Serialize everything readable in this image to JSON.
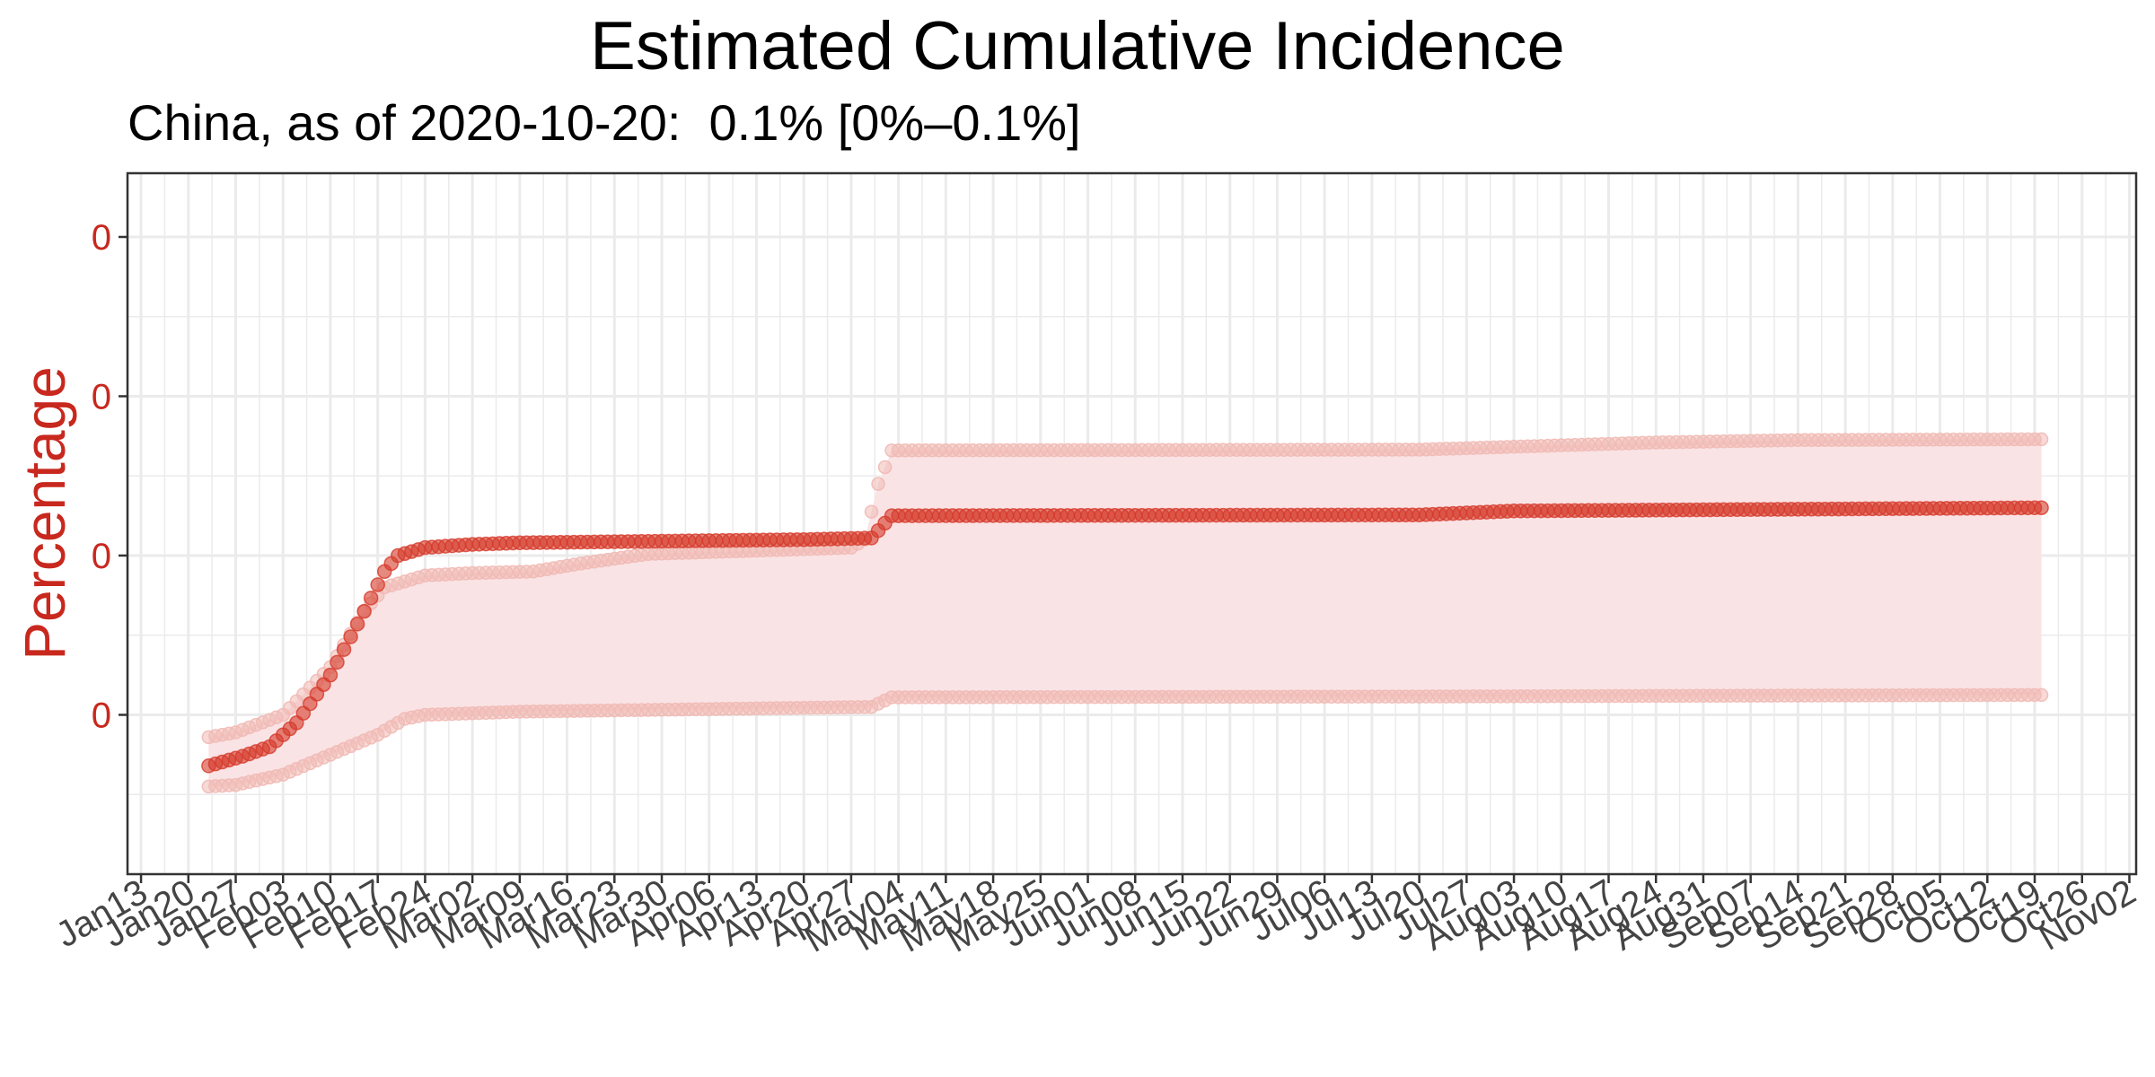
{
  "chart_data": {
    "type": "scatter",
    "title": "Estimated Cumulative Incidence",
    "subtitle": "China, as of 2020-10-20:  0.1% [0%–0.1%]",
    "xlabel": "",
    "ylabel": "Percentage",
    "y_tick_labels": [
      "0",
      "0",
      "0",
      "0"
    ],
    "y_tick_values": [
      0.02,
      0.04,
      0.06,
      0.08
    ],
    "ylim": [
      0.0,
      0.088
    ],
    "xlim": [
      "2020-01-11",
      "2020-11-03"
    ],
    "x_tick_labels": [
      "Jan13",
      "Jan20",
      "Jan27",
      "Feb03",
      "Feb10",
      "Feb17",
      "Feb24",
      "Mar02",
      "Mar09",
      "Mar16",
      "Mar23",
      "Mar30",
      "Apr06",
      "Apr13",
      "Apr20",
      "Apr27",
      "May04",
      "May11",
      "May18",
      "May25",
      "Jun01",
      "Jun08",
      "Jun15",
      "Jun22",
      "Jun29",
      "Jul06",
      "Jul13",
      "Jul20",
      "Jul27",
      "Aug03",
      "Aug10",
      "Aug17",
      "Aug24",
      "Aug31",
      "Sep07",
      "Sep14",
      "Sep21",
      "Sep28",
      "Oct05",
      "Oct12",
      "Oct19",
      "Oct26",
      "Nov02"
    ],
    "x_tick_dates": [
      "2020-01-13",
      "2020-01-20",
      "2020-01-27",
      "2020-02-03",
      "2020-02-10",
      "2020-02-17",
      "2020-02-24",
      "2020-03-02",
      "2020-03-09",
      "2020-03-16",
      "2020-03-23",
      "2020-03-30",
      "2020-04-06",
      "2020-04-13",
      "2020-04-20",
      "2020-04-27",
      "2020-05-04",
      "2020-05-11",
      "2020-05-18",
      "2020-05-25",
      "2020-06-01",
      "2020-06-08",
      "2020-06-15",
      "2020-06-22",
      "2020-06-29",
      "2020-07-06",
      "2020-07-13",
      "2020-07-20",
      "2020-07-27",
      "2020-08-03",
      "2020-08-10",
      "2020-08-17",
      "2020-08-24",
      "2020-08-31",
      "2020-09-07",
      "2020-09-14",
      "2020-09-21",
      "2020-09-28",
      "2020-10-05",
      "2020-10-12",
      "2020-10-19",
      "2020-10-26",
      "2020-11-02"
    ],
    "grid": true,
    "date_range": [
      "2020-01-23",
      "2020-10-20"
    ],
    "series": [
      {
        "role": "estimate",
        "points": [
          [
            "2020-01-23",
            0.0136
          ],
          [
            "2020-01-28",
            0.0148
          ],
          [
            "2020-02-01",
            0.016
          ],
          [
            "2020-02-05",
            0.019
          ],
          [
            "2020-02-10",
            0.025
          ],
          [
            "2020-02-15",
            0.033
          ],
          [
            "2020-02-18",
            0.038
          ],
          [
            "2020-02-20",
            0.04
          ],
          [
            "2020-02-24",
            0.041
          ],
          [
            "2020-03-02",
            0.0414
          ],
          [
            "2020-03-09",
            0.0416
          ],
          [
            "2020-04-20",
            0.042
          ],
          [
            "2020-04-30",
            0.0422
          ],
          [
            "2020-05-03",
            0.045
          ],
          [
            "2020-07-20",
            0.0451
          ],
          [
            "2020-08-03",
            0.0456
          ],
          [
            "2020-10-20",
            0.046
          ]
        ]
      },
      {
        "role": "lower",
        "points": [
          [
            "2020-01-23",
            0.011
          ],
          [
            "2020-01-27",
            0.0112
          ],
          [
            "2020-02-03",
            0.0125
          ],
          [
            "2020-02-10",
            0.015
          ],
          [
            "2020-02-17",
            0.0175
          ],
          [
            "2020-02-21",
            0.0195
          ],
          [
            "2020-02-24",
            0.02
          ],
          [
            "2020-03-09",
            0.0204
          ],
          [
            "2020-04-30",
            0.021
          ],
          [
            "2020-05-03",
            0.0222
          ],
          [
            "2020-07-20",
            0.0223
          ],
          [
            "2020-10-20",
            0.0225
          ]
        ]
      },
      {
        "role": "upper",
        "points": [
          [
            "2020-01-23",
            0.0172
          ],
          [
            "2020-01-27",
            0.0178
          ],
          [
            "2020-02-03",
            0.02
          ],
          [
            "2020-02-10",
            0.026
          ],
          [
            "2020-02-15",
            0.033
          ],
          [
            "2020-02-18",
            0.036
          ],
          [
            "2020-02-24",
            0.0375
          ],
          [
            "2020-03-02",
            0.0378
          ],
          [
            "2020-03-11",
            0.038
          ],
          [
            "2020-03-18",
            0.039
          ],
          [
            "2020-03-28",
            0.0402
          ],
          [
            "2020-04-20",
            0.0408
          ],
          [
            "2020-04-27",
            0.041
          ],
          [
            "2020-04-29",
            0.042
          ],
          [
            "2020-05-01",
            0.049
          ],
          [
            "2020-05-03",
            0.0532
          ],
          [
            "2020-07-20",
            0.0533
          ],
          [
            "2020-08-24",
            0.0542
          ],
          [
            "2020-09-14",
            0.0545
          ],
          [
            "2020-10-20",
            0.0546
          ]
        ]
      }
    ]
  },
  "colors": {
    "accent": "#d63a2a",
    "ribbon": "#f9e3e5",
    "bound_point": "#f1b9b4",
    "y_label": "#c8281e",
    "tick_text": "#444444",
    "grid": "#ebebeb",
    "panel_border": "#333333"
  }
}
